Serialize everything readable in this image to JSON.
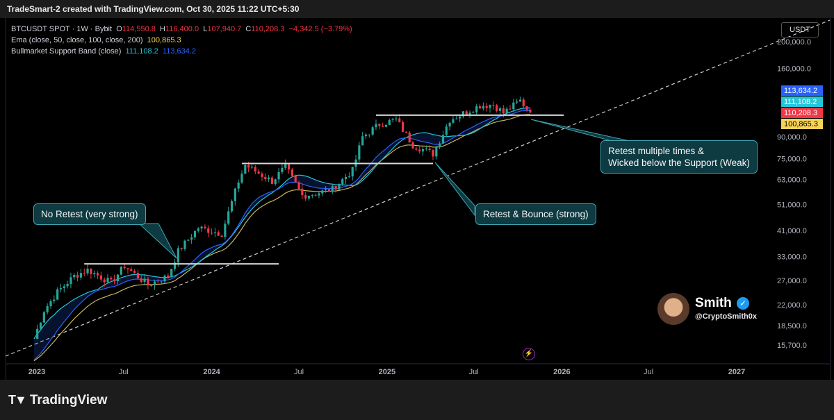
{
  "header": {
    "title": "TradeSmart-2 created with TradingView.com, Oct 30, 2025 11:22 UTC+5:30"
  },
  "legend": {
    "symbol": "BTCUSDT SPOT · 1W · Bybit",
    "open_label": "O",
    "open": "114,550.8",
    "high_label": "H",
    "high": "116,400.0",
    "low_label": "L",
    "low": "107,940.7",
    "close_label": "C",
    "close": "110,208.3",
    "change": "−4,342.5 (−3.79%)",
    "ema_label": "Ema (close, 50, close, 100, close, 200)",
    "ema_value": "100,865.3",
    "band_label": "Bullmarket Support Band (close)",
    "band_v1": "111,108.2",
    "band_v2": "113,634.2"
  },
  "currency": "USDT",
  "callouts": {
    "no_retest": "No Retest (very strong)",
    "retest_bounce": "Retest & Bounce (strong)",
    "retest_multi_l1": "Retest multiple times &",
    "retest_multi_l2": "Wicked below the Support (Weak)"
  },
  "author": {
    "name": "Smith",
    "handle": "@CryptoSmith0x"
  },
  "footer": {
    "brand": "TradingView"
  },
  "colors": {
    "up": "#26a69a",
    "down": "#f23645",
    "ema": "#c8b560",
    "band1": "#26c6da",
    "band2": "#2962ff"
  },
  "chart_data": {
    "type": "candlestick",
    "symbol": "BTCUSDT SPOT",
    "interval": "1W",
    "y_scale": "log",
    "y_ticks": [
      "200,000.0",
      "160,000.0",
      "90,000.0",
      "75,000.0",
      "63,000.0",
      "51,000.0",
      "41,000.0",
      "33,000.0",
      "27,000.0",
      "22,000.0",
      "18,500.0",
      "15,700.0"
    ],
    "y_tick_values": [
      200000,
      160000,
      90000,
      75000,
      63000,
      51000,
      41000,
      33000,
      27000,
      22000,
      18500,
      15700
    ],
    "x_ticks": [
      "2023",
      "Jul",
      "2024",
      "Jul",
      "2025",
      "Jul",
      "2026",
      "Jul",
      "2027"
    ],
    "x_tick_dates": [
      "2023-01-01",
      "2023-07-01",
      "2024-01-01",
      "2024-07-01",
      "2025-01-01",
      "2025-07-01",
      "2026-01-01",
      "2026-07-01",
      "2027-01-01"
    ],
    "price_labels": [
      {
        "text": "113,634.2",
        "value": 113634.2,
        "color": "#2962ff"
      },
      {
        "text": "111,108.2",
        "value": 111108.2,
        "color": "#26c6da"
      },
      {
        "text": "110,208.3",
        "value": 110208.3,
        "color": "#f23645"
      },
      {
        "text": "100,865.3",
        "value": 100865.3,
        "color": "#f7d358"
      }
    ],
    "close_approx": [
      [
        "2022-12-26",
        16550
      ],
      [
        "2023-01-16",
        21000
      ],
      [
        "2023-02-13",
        24500
      ],
      [
        "2023-03-20",
        28000
      ],
      [
        "2023-04-17",
        29500
      ],
      [
        "2023-06-05",
        26500
      ],
      [
        "2023-07-03",
        30500
      ],
      [
        "2023-08-21",
        26000
      ],
      [
        "2023-10-02",
        28000
      ],
      [
        "2023-10-23",
        34500
      ],
      [
        "2023-12-04",
        42000
      ],
      [
        "2024-01-22",
        40000
      ],
      [
        "2024-02-26",
        62000
      ],
      [
        "2024-03-11",
        71000
      ],
      [
        "2024-05-06",
        62000
      ],
      [
        "2024-06-03",
        70000
      ],
      [
        "2024-07-08",
        55000
      ],
      [
        "2024-08-05",
        56000
      ],
      [
        "2024-09-09",
        58000
      ],
      [
        "2024-10-21",
        68000
      ],
      [
        "2024-11-11",
        90000
      ],
      [
        "2024-12-16",
        100000
      ],
      [
        "2025-01-20",
        104000
      ],
      [
        "2025-02-24",
        84000
      ],
      [
        "2025-04-07",
        78000
      ],
      [
        "2025-05-12",
        104000
      ],
      [
        "2025-07-14",
        117000
      ],
      [
        "2025-08-11",
        118000
      ],
      [
        "2025-09-01",
        110000
      ],
      [
        "2025-10-06",
        122000
      ],
      [
        "2025-10-27",
        110208.3
      ]
    ],
    "support_lines": [
      {
        "from": "2023-04-10",
        "to": "2024-05-20",
        "price": 31000
      },
      {
        "from": "2024-03-04",
        "to": "2025-04-07",
        "price": 72000
      },
      {
        "from": "2024-12-09",
        "to": "2026-01-05",
        "price": 108000
      }
    ],
    "annotations": [
      "No Retest (very strong)",
      "Retest & Bounce (strong)",
      "Retest multiple times & Wicked below the Support (Weak)"
    ]
  }
}
